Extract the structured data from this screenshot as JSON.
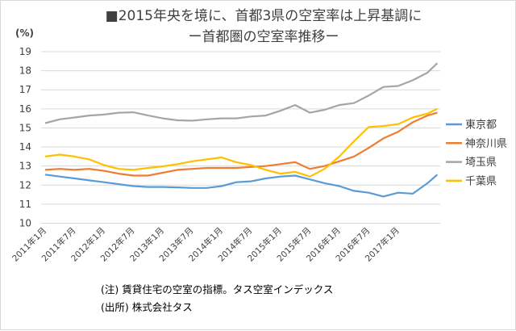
{
  "chart_data": {
    "type": "line",
    "title": "■2015年央を境に、首都3県の空室率は上昇基調に",
    "subtitle": "ー首都圏の空室率推移ー",
    "ylabel": "(%)",
    "xlabel": "",
    "ylim": [
      10,
      19
    ],
    "yticks": [
      "10",
      "11",
      "12",
      "13",
      "14",
      "15",
      "16",
      "17",
      "18",
      "19"
    ],
    "xtick_labels": [
      "2011年1月",
      "2011年7月",
      "2012年1月",
      "2012年7月",
      "2013年1月",
      "2013年7月",
      "2014年1月",
      "2014年7月",
      "2015年1月",
      "2015年7月",
      "2016年1月",
      "2016年7月",
      "2017年1月"
    ],
    "grid": true,
    "legend_position": "right",
    "x": [
      "2011-01",
      "2011-04",
      "2011-07",
      "2011-10",
      "2012-01",
      "2012-04",
      "2012-07",
      "2012-10",
      "2013-01",
      "2013-04",
      "2013-07",
      "2013-10",
      "2014-01",
      "2014-04",
      "2014-07",
      "2014-10",
      "2015-01",
      "2015-04",
      "2015-07",
      "2015-10",
      "2016-01",
      "2016-04",
      "2016-07",
      "2016-10",
      "2017-01",
      "2017-04",
      "2017-07",
      "2017-09"
    ],
    "series": [
      {
        "name": "東京都",
        "color": "#5b9bd5",
        "values": [
          12.55,
          12.45,
          12.35,
          12.25,
          12.15,
          12.05,
          11.95,
          11.9,
          11.9,
          11.88,
          11.85,
          11.85,
          11.95,
          12.15,
          12.2,
          12.35,
          12.45,
          12.5,
          12.3,
          12.1,
          11.95,
          11.7,
          11.6,
          11.4,
          11.6,
          11.55,
          12.1,
          12.55
        ]
      },
      {
        "name": "神奈川県",
        "color": "#ed7d31",
        "values": [
          12.8,
          12.85,
          12.8,
          12.85,
          12.75,
          12.6,
          12.5,
          12.5,
          12.65,
          12.8,
          12.85,
          12.9,
          12.9,
          12.9,
          12.95,
          13.0,
          13.1,
          13.2,
          12.85,
          13.0,
          13.25,
          13.5,
          13.95,
          14.45,
          14.8,
          15.3,
          15.65,
          15.8
        ]
      },
      {
        "name": "埼玉県",
        "color": "#a5a5a5",
        "values": [
          15.25,
          15.45,
          15.55,
          15.65,
          15.7,
          15.8,
          15.82,
          15.65,
          15.5,
          15.4,
          15.38,
          15.45,
          15.5,
          15.5,
          15.6,
          15.65,
          15.9,
          16.2,
          15.8,
          15.95,
          16.2,
          16.3,
          16.7,
          17.15,
          17.2,
          17.5,
          17.9,
          18.4
        ]
      },
      {
        "name": "千葉県",
        "color": "#ffc000",
        "values": [
          13.5,
          13.6,
          13.5,
          13.35,
          13.05,
          12.85,
          12.8,
          12.9,
          12.98,
          13.1,
          13.25,
          13.35,
          13.45,
          13.2,
          13.05,
          12.8,
          12.6,
          12.7,
          12.45,
          12.85,
          13.5,
          14.3,
          15.05,
          15.1,
          15.2,
          15.55,
          15.75,
          16.0
        ]
      }
    ]
  },
  "notes": {
    "line1": "(注) 賃貸住宅の空室の指標。タス空室インデックス",
    "line2": "(出所) 株式会社タス"
  }
}
